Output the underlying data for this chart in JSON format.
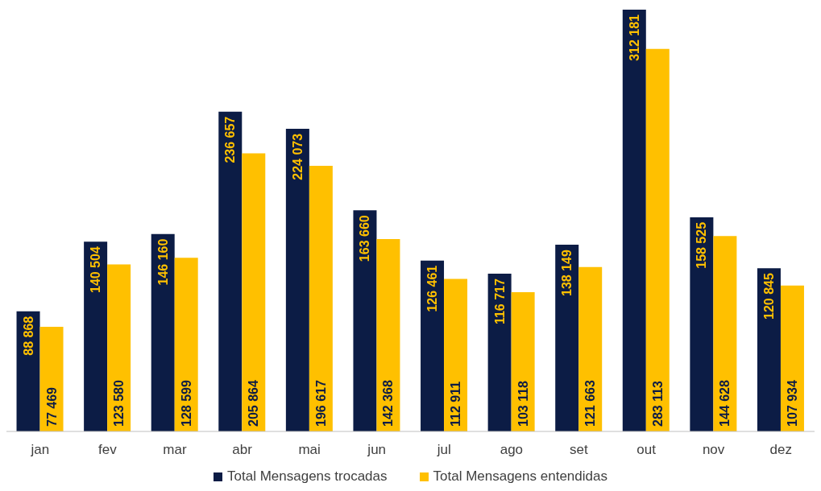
{
  "chart_data": {
    "type": "bar",
    "categories": [
      "jan",
      "fev",
      "mar",
      "abr",
      "mai",
      "jun",
      "jul",
      "ago",
      "set",
      "out",
      "nov",
      "dez"
    ],
    "series": [
      {
        "name": "Total Mensagens trocadas",
        "color": "#0c1c45",
        "values": [
          88868,
          140504,
          146160,
          236657,
          224073,
          163660,
          126461,
          116717,
          138149,
          312181,
          158525,
          120845
        ],
        "value_labels": [
          "88 868",
          "140 504",
          "146 160",
          "236 657",
          "224 073",
          "163 660",
          "126 461",
          "116 717",
          "138 149",
          "312 181",
          "158 525",
          "120 845"
        ]
      },
      {
        "name": "Total Mensagens entendidas",
        "color": "#ffc000",
        "values": [
          77469,
          123580,
          128599,
          205864,
          196617,
          142368,
          112911,
          103118,
          121663,
          283113,
          144628,
          107934
        ],
        "value_labels": [
          "77 469",
          "123 580",
          "128 599",
          "205 864",
          "196 617",
          "142 368",
          "112 911",
          "103 118",
          "121 663",
          "283 113",
          "144 628",
          "107 934"
        ]
      }
    ],
    "legend": "bottom",
    "grid": false
  }
}
